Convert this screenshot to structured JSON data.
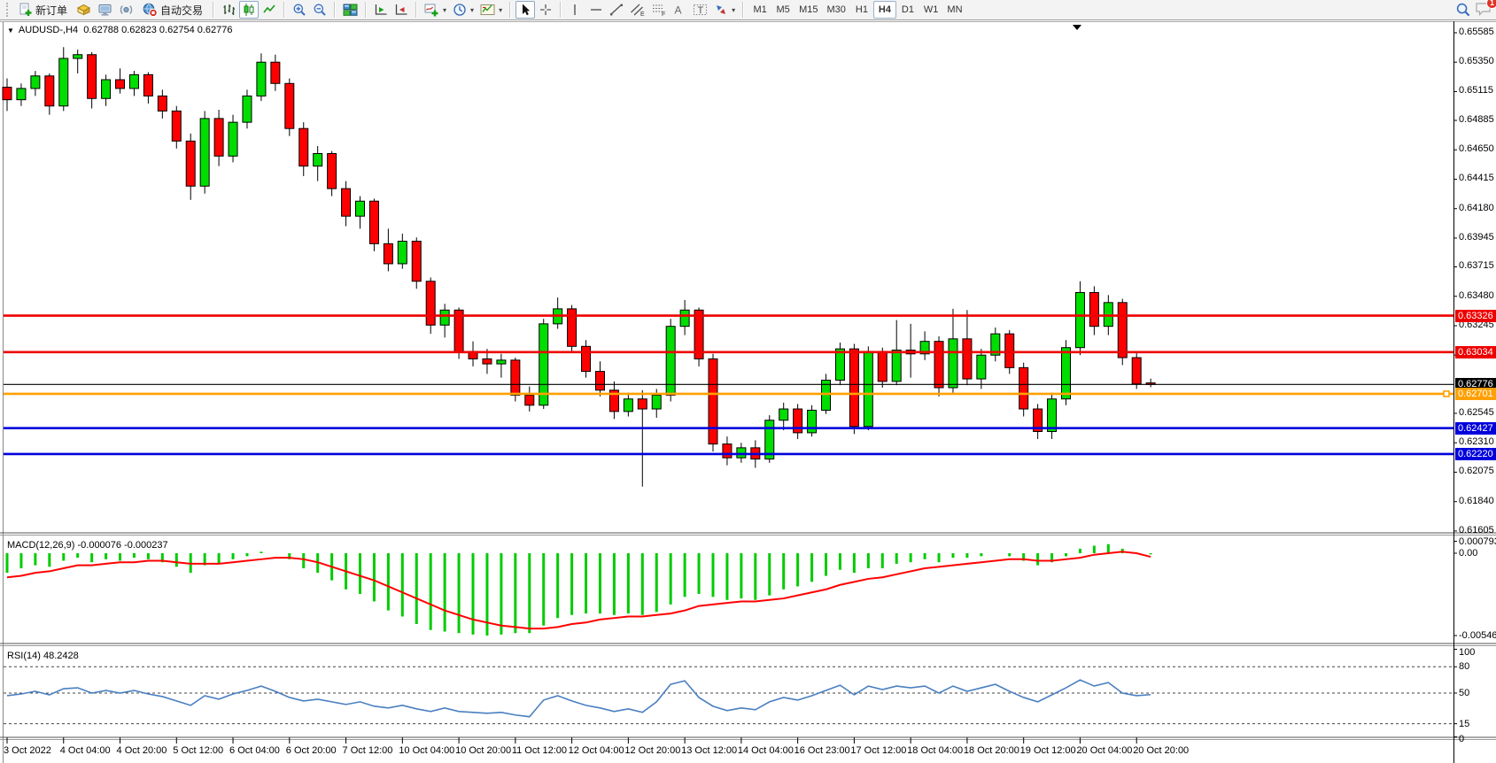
{
  "toolbar": {
    "new_order_label": "新订单",
    "autotrade_label": "自动交易",
    "timeframes": [
      "M1",
      "M5",
      "M15",
      "M30",
      "H1",
      "H4",
      "D1",
      "W1",
      "MN"
    ],
    "active_timeframe": "H4",
    "notification_count": "1"
  },
  "chart": {
    "title": "AUDUSD-,H4",
    "ohlc_display": "0.62788 0.62823 0.62754 0.62776"
  },
  "macd": {
    "name": "MACD(12,26,9)",
    "values": "-0.000076 -0.000237",
    "axis_labels": [
      "0.000793",
      "0.00",
      "-0.005464"
    ]
  },
  "rsi": {
    "name": "RSI(14)",
    "value": "48.2428",
    "axis_labels": [
      "100",
      "80",
      "50",
      "15",
      "0"
    ]
  },
  "chart_data": {
    "type": "candlestick",
    "symbol_timeframe": "AUDUSD-,H4",
    "colors": {
      "bull": "#00dd00",
      "bear": "#ff0000",
      "wick": "#000000",
      "macd_hist": "#00cc00",
      "macd_signal": "#ff0000",
      "rsi_line": "#4a7fc1",
      "level_red": "#ee0000",
      "level_blue": "#0000dd",
      "level_orange": "#ffa000",
      "current_black": "#000000"
    },
    "price_axis_labels": [
      0.65585,
      0.6535,
      0.65115,
      0.64885,
      0.6465,
      0.64415,
      0.6418,
      0.63945,
      0.63715,
      0.6348,
      0.63245,
      0.6301,
      0.62545,
      0.6231,
      0.62075,
      0.6184,
      0.61605
    ],
    "levels": [
      {
        "value": 0.63326,
        "label": "0.63326",
        "kind": "red"
      },
      {
        "value": 0.63034,
        "label": "0.63034",
        "kind": "red"
      },
      {
        "value": 0.62776,
        "label": "0.62776",
        "kind": "current"
      },
      {
        "value": 0.62701,
        "label": "0.62701",
        "kind": "orange"
      },
      {
        "value": 0.62427,
        "label": "0.62427",
        "kind": "blue"
      },
      {
        "value": 0.6222,
        "label": "0.62220",
        "kind": "blue"
      }
    ],
    "current_price": 0.62776,
    "time_labels": [
      "3 Oct 2022",
      "4 Oct 04:00",
      "4 Oct 20:00",
      "5 Oct 12:00",
      "6 Oct 04:00",
      "6 Oct 20:00",
      "7 Oct 12:00",
      "10 Oct 04:00",
      "10 Oct 20:00",
      "11 Oct 12:00",
      "12 Oct 04:00",
      "12 Oct 20:00",
      "13 Oct 12:00",
      "14 Oct 04:00",
      "16 Oct 23:00",
      "17 Oct 12:00",
      "18 Oct 04:00",
      "18 Oct 20:00",
      "19 Oct 12:00",
      "20 Oct 04:00",
      "20 Oct 20:00"
    ],
    "candles": [
      [
        0.6515,
        0.6522,
        0.6496,
        0.6505
      ],
      [
        0.6505,
        0.6518,
        0.65,
        0.6514
      ],
      [
        0.6514,
        0.6528,
        0.6508,
        0.6524
      ],
      [
        0.6524,
        0.6526,
        0.6493,
        0.65
      ],
      [
        0.65,
        0.6547,
        0.6496,
        0.6538
      ],
      [
        0.6538,
        0.6545,
        0.6526,
        0.6541
      ],
      [
        0.6541,
        0.6543,
        0.6498,
        0.6506
      ],
      [
        0.6506,
        0.6525,
        0.65,
        0.6521
      ],
      [
        0.6521,
        0.653,
        0.651,
        0.6514
      ],
      [
        0.6514,
        0.6528,
        0.6508,
        0.6525
      ],
      [
        0.6525,
        0.6527,
        0.6502,
        0.6508
      ],
      [
        0.6508,
        0.6513,
        0.649,
        0.6496
      ],
      [
        0.6496,
        0.65,
        0.6466,
        0.6472
      ],
      [
        0.6472,
        0.6478,
        0.6425,
        0.6436
      ],
      [
        0.6436,
        0.6496,
        0.643,
        0.649
      ],
      [
        0.649,
        0.6497,
        0.6452,
        0.646
      ],
      [
        0.646,
        0.6493,
        0.6455,
        0.6487
      ],
      [
        0.6487,
        0.6513,
        0.6482,
        0.6508
      ],
      [
        0.6508,
        0.6542,
        0.6504,
        0.6535
      ],
      [
        0.6535,
        0.6541,
        0.6512,
        0.6518
      ],
      [
        0.6518,
        0.6522,
        0.6476,
        0.6482
      ],
      [
        0.6482,
        0.6487,
        0.6444,
        0.6452
      ],
      [
        0.6452,
        0.6468,
        0.644,
        0.6462
      ],
      [
        0.6462,
        0.6464,
        0.6428,
        0.6434
      ],
      [
        0.6434,
        0.644,
        0.6404,
        0.6412
      ],
      [
        0.6412,
        0.6428,
        0.6402,
        0.6424
      ],
      [
        0.6424,
        0.6426,
        0.6384,
        0.639
      ],
      [
        0.639,
        0.6402,
        0.6368,
        0.6374
      ],
      [
        0.6374,
        0.6398,
        0.637,
        0.6392
      ],
      [
        0.6392,
        0.6395,
        0.6354,
        0.636
      ],
      [
        0.636,
        0.6363,
        0.6318,
        0.6325
      ],
      [
        0.6325,
        0.6342,
        0.6315,
        0.6337
      ],
      [
        0.6337,
        0.6339,
        0.6298,
        0.6304
      ],
      [
        0.6304,
        0.6312,
        0.6292,
        0.6298
      ],
      [
        0.6298,
        0.6306,
        0.6286,
        0.6294
      ],
      [
        0.6294,
        0.6302,
        0.6283,
        0.6297
      ],
      [
        0.6297,
        0.6299,
        0.6264,
        0.6269
      ],
      [
        0.6269,
        0.6276,
        0.6256,
        0.6261
      ],
      [
        0.6261,
        0.633,
        0.6258,
        0.6326
      ],
      [
        0.6326,
        0.6347,
        0.6322,
        0.6338
      ],
      [
        0.6338,
        0.6341,
        0.6303,
        0.6308
      ],
      [
        0.6308,
        0.6313,
        0.6283,
        0.6288
      ],
      [
        0.6288,
        0.6296,
        0.6268,
        0.6273
      ],
      [
        0.6273,
        0.628,
        0.625,
        0.6256
      ],
      [
        0.6256,
        0.6271,
        0.6252,
        0.6266
      ],
      [
        0.6266,
        0.6273,
        0.6196,
        0.6258
      ],
      [
        0.6258,
        0.6274,
        0.6251,
        0.6269
      ],
      [
        0.6269,
        0.633,
        0.6264,
        0.6324
      ],
      [
        0.6324,
        0.6345,
        0.6317,
        0.6337
      ],
      [
        0.6337,
        0.6339,
        0.6292,
        0.6298
      ],
      [
        0.6298,
        0.6302,
        0.6224,
        0.623
      ],
      [
        0.623,
        0.6236,
        0.6213,
        0.6219
      ],
      [
        0.6219,
        0.6231,
        0.6215,
        0.6227
      ],
      [
        0.6227,
        0.6233,
        0.6211,
        0.6218
      ],
      [
        0.6218,
        0.6253,
        0.6215,
        0.6249
      ],
      [
        0.6249,
        0.6263,
        0.6241,
        0.6258
      ],
      [
        0.6258,
        0.6262,
        0.6234,
        0.6239
      ],
      [
        0.6239,
        0.6261,
        0.6236,
        0.6257
      ],
      [
        0.6257,
        0.6286,
        0.6254,
        0.6281
      ],
      [
        0.6281,
        0.6311,
        0.6277,
        0.6306
      ],
      [
        0.6306,
        0.631,
        0.6238,
        0.6244
      ],
      [
        0.6244,
        0.6308,
        0.6241,
        0.6304
      ],
      [
        0.6304,
        0.6307,
        0.6275,
        0.628
      ],
      [
        0.628,
        0.6329,
        0.6277,
        0.6305
      ],
      [
        0.6305,
        0.6326,
        0.6283,
        0.6302
      ],
      [
        0.6302,
        0.632,
        0.6297,
        0.6312
      ],
      [
        0.6312,
        0.6316,
        0.6268,
        0.6275
      ],
      [
        0.6275,
        0.6338,
        0.6271,
        0.6314
      ],
      [
        0.6314,
        0.6337,
        0.6277,
        0.6282
      ],
      [
        0.6282,
        0.6306,
        0.6274,
        0.6301
      ],
      [
        0.6301,
        0.6323,
        0.6296,
        0.6318
      ],
      [
        0.6318,
        0.6321,
        0.6286,
        0.6291
      ],
      [
        0.6291,
        0.6295,
        0.6252,
        0.6258
      ],
      [
        0.6258,
        0.6262,
        0.6234,
        0.624
      ],
      [
        0.624,
        0.6271,
        0.6234,
        0.6266
      ],
      [
        0.6266,
        0.6313,
        0.6261,
        0.6307
      ],
      [
        0.6307,
        0.636,
        0.6301,
        0.6351
      ],
      [
        0.6351,
        0.6356,
        0.6317,
        0.6324
      ],
      [
        0.6324,
        0.6349,
        0.6317,
        0.6343
      ],
      [
        0.6343,
        0.6346,
        0.6293,
        0.6299
      ],
      [
        0.6299,
        0.6303,
        0.6274,
        0.6278
      ],
      [
        0.62788,
        0.62823,
        0.62754,
        0.62776
      ]
    ],
    "macd": {
      "histogram": [
        -0.0013,
        -0.001,
        -0.0008,
        -0.0009,
        -0.0005,
        -0.0003,
        -0.0006,
        -0.0004,
        -0.0005,
        -0.0003,
        -0.0004,
        -0.0006,
        -0.0009,
        -0.0013,
        -0.0008,
        -0.0007,
        -0.0004,
        -0.0002,
        0.0001,
        0.0,
        -0.0004,
        -0.001,
        -0.0013,
        -0.0018,
        -0.0024,
        -0.0027,
        -0.0032,
        -0.0038,
        -0.0042,
        -0.0047,
        -0.0051,
        -0.0052,
        -0.0053,
        -0.0054,
        -0.005464,
        -0.0054,
        -0.0053,
        -0.0053,
        -0.0048,
        -0.0043,
        -0.0041,
        -0.004,
        -0.004,
        -0.0041,
        -0.004,
        -0.0041,
        -0.0039,
        -0.0034,
        -0.0029,
        -0.0027,
        -0.0029,
        -0.0031,
        -0.003,
        -0.0031,
        -0.0028,
        -0.0024,
        -0.0022,
        -0.0019,
        -0.0015,
        -0.0011,
        -0.0013,
        -0.001,
        -0.001,
        -0.0007,
        -0.0006,
        -0.0004,
        -0.0006,
        -0.0003,
        -0.0003,
        -0.0002,
        0.0,
        -0.0002,
        -0.0005,
        -0.0008,
        -0.0006,
        -0.0002,
        0.0003,
        0.0005,
        0.0006,
        0.0003,
        0.0,
        -7.6e-05
      ],
      "signal": [
        -0.0016,
        -0.0015,
        -0.0013,
        -0.0012,
        -0.001,
        -0.0008,
        -0.0008,
        -0.0007,
        -0.0006,
        -0.0006,
        -0.0005,
        -0.0005,
        -0.0006,
        -0.0007,
        -0.0007,
        -0.0007,
        -0.0006,
        -0.0005,
        -0.0004,
        -0.0003,
        -0.0003,
        -0.0004,
        -0.0006,
        -0.0009,
        -0.0012,
        -0.0015,
        -0.0018,
        -0.0022,
        -0.0026,
        -0.003,
        -0.0034,
        -0.0038,
        -0.0041,
        -0.0044,
        -0.0046,
        -0.0048,
        -0.0049,
        -0.005,
        -0.005,
        -0.0049,
        -0.0047,
        -0.0046,
        -0.0044,
        -0.0043,
        -0.0042,
        -0.0042,
        -0.0041,
        -0.004,
        -0.0038,
        -0.0035,
        -0.0034,
        -0.0033,
        -0.0032,
        -0.0032,
        -0.0031,
        -0.003,
        -0.0028,
        -0.0026,
        -0.0024,
        -0.0021,
        -0.0019,
        -0.0017,
        -0.0016,
        -0.0014,
        -0.0012,
        -0.001,
        -0.0009,
        -0.0008,
        -0.0007,
        -0.0006,
        -0.0005,
        -0.0004,
        -0.0004,
        -0.0005,
        -0.0005,
        -0.0004,
        -0.0003,
        -0.0001,
        0.0,
        0.0001,
        0.0,
        -0.000237
      ],
      "axis_values": [
        0.000793,
        0,
        -0.005464
      ]
    },
    "rsi": {
      "values": [
        47,
        49,
        52,
        48,
        55,
        56,
        50,
        53,
        50,
        53,
        49,
        46,
        41,
        36,
        47,
        43,
        49,
        53,
        58,
        52,
        45,
        41,
        43,
        40,
        37,
        40,
        35,
        33,
        36,
        32,
        29,
        33,
        29,
        28,
        27,
        28,
        25,
        23,
        42,
        47,
        41,
        36,
        33,
        29,
        32,
        28,
        40,
        60,
        64,
        45,
        35,
        30,
        33,
        31,
        40,
        45,
        42,
        47,
        53,
        59,
        48,
        58,
        54,
        58,
        56,
        58,
        50,
        58,
        52,
        56,
        60,
        52,
        45,
        40,
        48,
        56,
        65,
        58,
        62,
        50,
        47,
        48.2428
      ],
      "levels": [
        80,
        50,
        15
      ],
      "axis_values": [
        100,
        80,
        50,
        15,
        0
      ]
    }
  }
}
